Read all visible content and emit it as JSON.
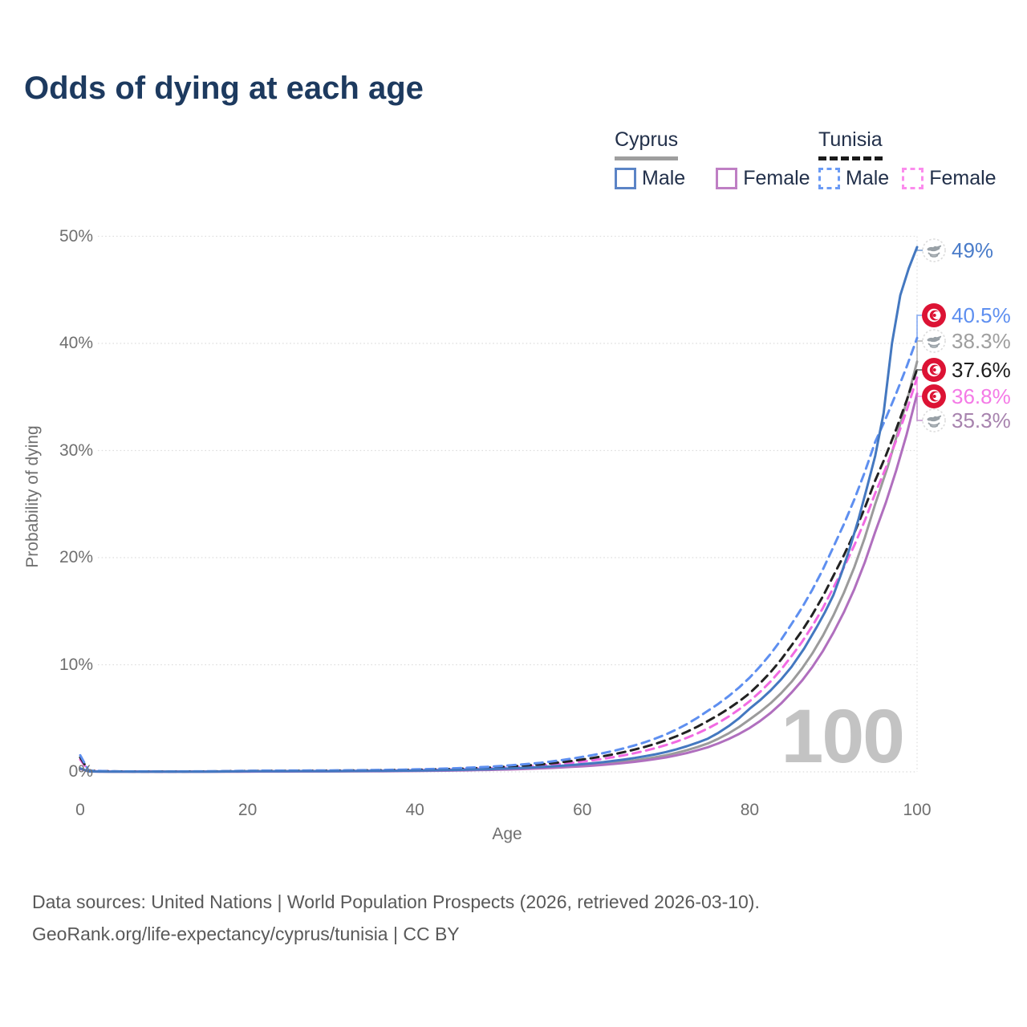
{
  "title": "Odds of dying at each age",
  "legend": {
    "groups": [
      {
        "title": "Cyprus",
        "line_style": "solid",
        "underline_color": "#9e9e9e",
        "items": [
          {
            "label": "Male",
            "color": "#5b84c6"
          },
          {
            "label": "Female",
            "color": "#bf7fc4"
          }
        ]
      },
      {
        "title": "Tunisia",
        "line_style": "dashed",
        "underline_color": "#1a1a1a",
        "items": [
          {
            "label": "Male",
            "color": "#6b9bf5"
          },
          {
            "label": "Female",
            "color": "#fb8ced"
          }
        ]
      }
    ]
  },
  "chart_data": {
    "type": "line",
    "title": "Odds of dying at each age",
    "xlabel": "Age",
    "ylabel": "Probability of dying",
    "x_ticks": [
      "0",
      "20",
      "40",
      "60",
      "80",
      "100"
    ],
    "y_ticks": [
      "0%",
      "10%",
      "20%",
      "30%",
      "40%",
      "50%"
    ],
    "xlim": [
      0,
      100
    ],
    "ylim": [
      0,
      50
    ],
    "grid": true,
    "legend_position": "top-right",
    "watermark": "100",
    "series": [
      {
        "id": "cyprus-combined",
        "country": "Cyprus",
        "line_style": "solid",
        "color": "#9b9b9b",
        "label_color": "#9e9e9e",
        "end_label": "38.3%",
        "icon": "cyprus-flag-icon",
        "points": [
          [
            0,
            0.3
          ],
          [
            1,
            0.04
          ],
          [
            5,
            0.014
          ],
          [
            10,
            0.012
          ],
          [
            15,
            0.02
          ],
          [
            20,
            0.04
          ],
          [
            25,
            0.048
          ],
          [
            30,
            0.055
          ],
          [
            35,
            0.072
          ],
          [
            40,
            0.1
          ],
          [
            45,
            0.155
          ],
          [
            50,
            0.24
          ],
          [
            55,
            0.38
          ],
          [
            60,
            0.6
          ],
          [
            65,
            0.95
          ],
          [
            70,
            1.55
          ],
          [
            75,
            2.65
          ],
          [
            80,
            4.9
          ],
          [
            85,
            8.4
          ],
          [
            90,
            14.6
          ],
          [
            95,
            25
          ],
          [
            98,
            32.5
          ],
          [
            100,
            38.3
          ]
        ]
      },
      {
        "id": "cyprus-female",
        "country": "Cyprus",
        "sex": "Female",
        "line_style": "solid",
        "color": "#b06fbe",
        "label_color": "#a783ae",
        "end_label": "35.3%",
        "icon": "cyprus-flag-icon",
        "points": [
          [
            0,
            0.28
          ],
          [
            1,
            0.035
          ],
          [
            5,
            0.013
          ],
          [
            10,
            0.011
          ],
          [
            15,
            0.016
          ],
          [
            20,
            0.026
          ],
          [
            25,
            0.032
          ],
          [
            30,
            0.042
          ],
          [
            35,
            0.058
          ],
          [
            40,
            0.082
          ],
          [
            45,
            0.13
          ],
          [
            50,
            0.2
          ],
          [
            55,
            0.33
          ],
          [
            60,
            0.52
          ],
          [
            65,
            0.83
          ],
          [
            70,
            1.35
          ],
          [
            75,
            2.3
          ],
          [
            80,
            4.1
          ],
          [
            85,
            7.4
          ],
          [
            90,
            13
          ],
          [
            95,
            22.4
          ],
          [
            100,
            35.3
          ]
        ]
      },
      {
        "id": "tunisia-female",
        "country": "Tunisia",
        "sex": "Female",
        "line_style": "dashed",
        "color": "#f16ae2",
        "label_color": "#f47ae6",
        "end_label": "36.8%",
        "icon": "tunisia-flag-icon",
        "points": [
          [
            0,
            1.15
          ],
          [
            1,
            0.09
          ],
          [
            5,
            0.03
          ],
          [
            10,
            0.023
          ],
          [
            15,
            0.033
          ],
          [
            20,
            0.06
          ],
          [
            25,
            0.075
          ],
          [
            30,
            0.09
          ],
          [
            35,
            0.115
          ],
          [
            40,
            0.16
          ],
          [
            45,
            0.24
          ],
          [
            50,
            0.37
          ],
          [
            55,
            0.59
          ],
          [
            60,
            0.96
          ],
          [
            65,
            1.55
          ],
          [
            70,
            2.5
          ],
          [
            75,
            4.05
          ],
          [
            80,
            6.6
          ],
          [
            85,
            10.8
          ],
          [
            90,
            17.2
          ],
          [
            95,
            26
          ],
          [
            100,
            36.8
          ]
        ]
      },
      {
        "id": "tunisia-combined",
        "country": "Tunisia",
        "line_style": "dashed",
        "color": "#222222",
        "label_color": "#1c1c1c",
        "end_label": "37.6%",
        "icon": "tunisia-flag-icon",
        "points": [
          [
            0,
            1.35
          ],
          [
            1,
            0.1
          ],
          [
            5,
            0.035
          ],
          [
            10,
            0.027
          ],
          [
            15,
            0.04
          ],
          [
            20,
            0.08
          ],
          [
            25,
            0.1
          ],
          [
            30,
            0.11
          ],
          [
            35,
            0.14
          ],
          [
            40,
            0.19
          ],
          [
            45,
            0.28
          ],
          [
            50,
            0.44
          ],
          [
            55,
            0.7
          ],
          [
            60,
            1.15
          ],
          [
            65,
            1.85
          ],
          [
            70,
            2.95
          ],
          [
            75,
            4.75
          ],
          [
            80,
            7.35
          ],
          [
            85,
            11.8
          ],
          [
            90,
            18.3
          ],
          [
            95,
            27.2
          ],
          [
            100,
            37.6
          ]
        ]
      },
      {
        "id": "tunisia-male",
        "country": "Tunisia",
        "sex": "Male",
        "line_style": "dashed",
        "color": "#5e8ff0",
        "label_color": "#5e8ff0",
        "end_label": "40.5%",
        "icon": "tunisia-flag-icon",
        "points": [
          [
            0,
            1.55
          ],
          [
            1,
            0.12
          ],
          [
            5,
            0.04
          ],
          [
            10,
            0.032
          ],
          [
            15,
            0.05
          ],
          [
            20,
            0.1
          ],
          [
            25,
            0.12
          ],
          [
            30,
            0.135
          ],
          [
            35,
            0.17
          ],
          [
            40,
            0.23
          ],
          [
            45,
            0.34
          ],
          [
            50,
            0.53
          ],
          [
            55,
            0.85
          ],
          [
            60,
            1.4
          ],
          [
            65,
            2.2
          ],
          [
            70,
            3.5
          ],
          [
            75,
            5.7
          ],
          [
            80,
            8.8
          ],
          [
            85,
            13.8
          ],
          [
            90,
            21
          ],
          [
            95,
            30.8
          ],
          [
            100,
            40.5
          ]
        ]
      },
      {
        "id": "cyprus-male",
        "country": "Cyprus",
        "sex": "Male",
        "line_style": "solid",
        "color": "#4478c0",
        "label_color": "#4a7cc9",
        "end_label": "49%",
        "icon": "cyprus-flag-icon",
        "points": [
          [
            0,
            0.33
          ],
          [
            1,
            0.045
          ],
          [
            5,
            0.016
          ],
          [
            10,
            0.013
          ],
          [
            15,
            0.025
          ],
          [
            20,
            0.055
          ],
          [
            25,
            0.065
          ],
          [
            30,
            0.07
          ],
          [
            35,
            0.09
          ],
          [
            40,
            0.12
          ],
          [
            45,
            0.18
          ],
          [
            50,
            0.28
          ],
          [
            55,
            0.45
          ],
          [
            60,
            0.72
          ],
          [
            65,
            1.15
          ],
          [
            70,
            1.85
          ],
          [
            75,
            3.1
          ],
          [
            80,
            5.9
          ],
          [
            85,
            9.8
          ],
          [
            88,
            13.5
          ],
          [
            90,
            16.5
          ],
          [
            92,
            21
          ],
          [
            94,
            26.5
          ],
          [
            95,
            29.5
          ],
          [
            96,
            33.5
          ],
          [
            97,
            40
          ],
          [
            98,
            44.5
          ],
          [
            99,
            47
          ],
          [
            100,
            49
          ]
        ]
      }
    ]
  },
  "footer": {
    "line1": "Data sources: United Nations | World Population Prospects (2026, retrieved 2026-03-10).",
    "line2": "GeoRank.org/life-expectancy/cyprus/tunisia | CC BY"
  }
}
